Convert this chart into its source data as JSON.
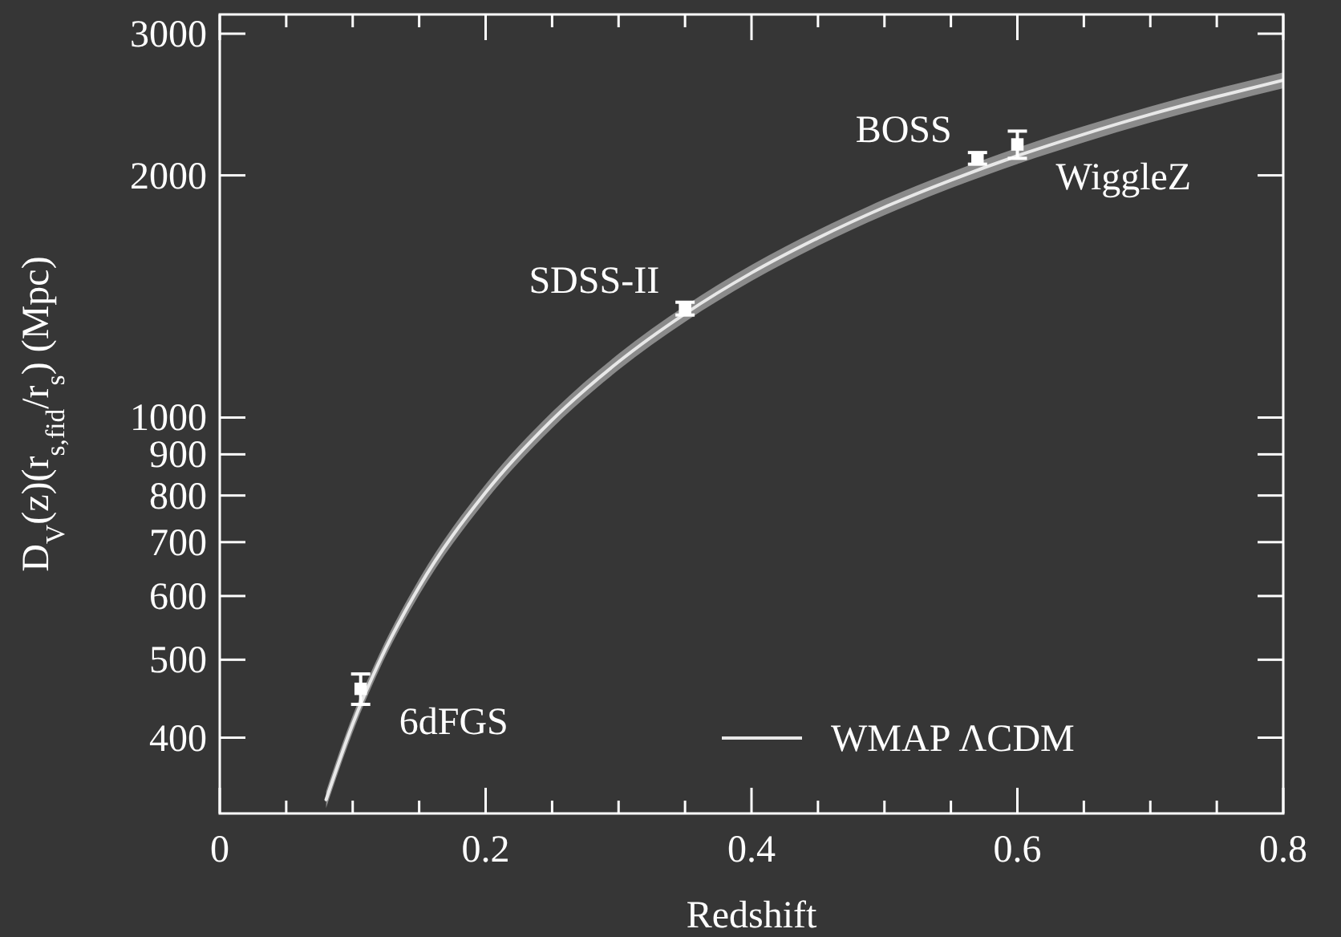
{
  "chart_data": {
    "type": "line",
    "xlabel": "Redshift",
    "ylabel": "D$_{V}$(z)(r$_{s,fid}$/r$_{s}$) (Mpc)",
    "log": "y",
    "legend": "bottom right",
    "xlim": [
      0,
      0.8
    ],
    "xticks": [
      0,
      {
        "value": 0.05,
        "label": null
      },
      {
        "value": 0.1,
        "label": null
      },
      {
        "value": 0.15,
        "label": null
      },
      0.2,
      {
        "value": 0.25,
        "label": null
      },
      {
        "value": 0.3,
        "label": null
      },
      {
        "value": 0.35,
        "label": null
      },
      0.4,
      {
        "value": 0.45,
        "label": null
      },
      {
        "value": 0.5,
        "label": null
      },
      {
        "value": 0.55,
        "label": null
      },
      0.6,
      {
        "value": 0.65,
        "label": null
      },
      {
        "value": 0.7,
        "label": null
      },
      {
        "value": 0.75,
        "label": null
      },
      0.8
    ],
    "ylim": [
      322,
      3170
    ],
    "yticks": [
      400,
      500,
      600,
      700,
      800,
      900,
      1000,
      2000,
      3000
    ],
    "series": [
      {
        "name": "WMAP ΛCDM",
        "color": "#e8e8e8",
        "x": [
          0.08,
          0.1,
          0.12,
          0.15,
          0.2,
          0.25,
          0.3,
          0.35,
          0.4,
          0.45,
          0.5,
          0.55,
          0.6,
          0.65,
          0.7,
          0.75,
          0.8
        ],
        "values": [
          335,
          416,
          497,
          616,
          807,
          993,
          1173,
          1346,
          1513,
          1672,
          1826,
          1973,
          2115,
          2250,
          2381,
          2505,
          2626
        ],
        "lower": [
          327,
          406,
          486,
          602,
          788,
          970,
          1146,
          1315,
          1478,
          1634,
          1784,
          1928,
          2066,
          2198,
          2326,
          2447,
          2566
        ],
        "upper": [
          343,
          426,
          508,
          630,
          826,
          1016,
          1200,
          1377,
          1548,
          1710,
          1868,
          2018,
          2164,
          2302,
          2436,
          2563,
          2686
        ]
      },
      {
        "type": "scatter",
        "color": "#ffffff",
        "marker": "square",
        "x": [
          0.106,
          0.35,
          0.57,
          0.6
        ],
        "values": [
          460,
          1366,
          2100,
          2185
        ],
        "errors": [
          20,
          25,
          35,
          85
        ]
      }
    ],
    "annotations": [
      {
        "text": "SDSS-II",
        "x": 0.35,
        "y": 1366
      },
      {
        "text": "6dFGS",
        "x": 0.106,
        "y": 460
      },
      {
        "text": "BOSS",
        "x": 0.57,
        "y": 2100
      },
      {
        "text": "WiggleZ",
        "x": 0.6,
        "y": 2185
      }
    ]
  }
}
